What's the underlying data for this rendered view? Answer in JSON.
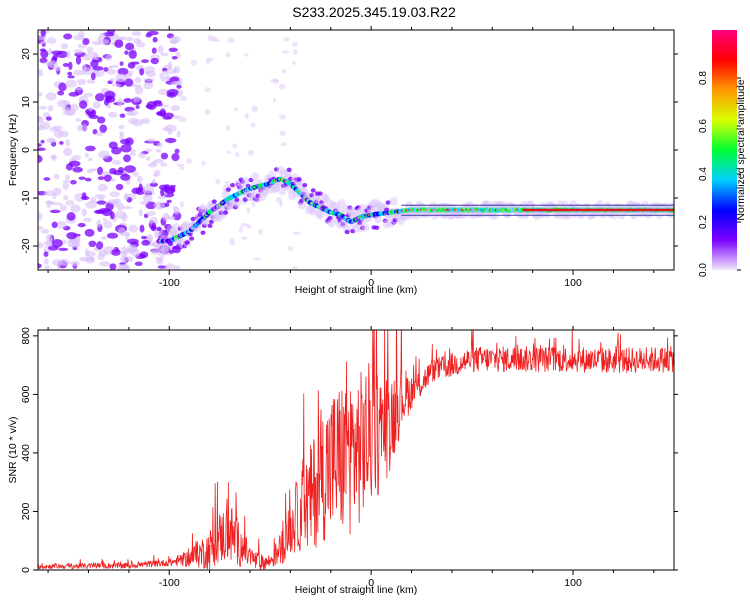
{
  "title": "S233.2025.345.19.03.R22",
  "chart_data": [
    {
      "type": "heatmap",
      "name": "spectrogram",
      "xlabel": "Height of straight line (km)",
      "ylabel": "Frequency (Hz)",
      "xlim": [
        -165,
        150
      ],
      "ylim": [
        -25,
        25
      ],
      "xticks": [
        -100,
        0,
        100
      ],
      "yticks": [
        -20,
        -10,
        0,
        10,
        20
      ],
      "ridge": {
        "x": [
          -100,
          -90,
          -80,
          -70,
          -60,
          -50,
          -45,
          -40,
          -35,
          -30,
          -25,
          -20,
          -15,
          -10,
          -5,
          0,
          10,
          20,
          40,
          60,
          80,
          100,
          120,
          150
        ],
        "y": [
          -19,
          -17,
          -13,
          -10,
          -8,
          -7,
          -6,
          -7,
          -9,
          -11,
          -12,
          -13,
          -13.5,
          -15,
          -14,
          -13.5,
          -13,
          -12.5,
          -12.5,
          -12.5,
          -12.5,
          -12.5,
          -12.5,
          -12.5
        ]
      },
      "colorbar": {
        "label": "Normalized spectral amplitude",
        "range": [
          0,
          1
        ],
        "ticks": [
          0.0,
          0.2,
          0.4,
          0.6,
          0.8
        ],
        "tick_labels": [
          "0.0",
          "0.2",
          "0.4",
          "0.6",
          "0.8"
        ],
        "colors": [
          "#f2e6fb",
          "#7b00ff",
          "#0000ff",
          "#00d0ff",
          "#00ff33",
          "#d8ff00",
          "#ff9900",
          "#ff0000",
          "#ff0080"
        ]
      }
    },
    {
      "type": "line",
      "name": "snr",
      "xlabel": "Height of straight line (km)",
      "ylabel": "SNR (10 * v/v)",
      "xlim": [
        -165,
        150
      ],
      "ylim": [
        0,
        820
      ],
      "xticks": [
        -100,
        0,
        100
      ],
      "yticks": [
        0,
        200,
        400,
        600,
        800
      ],
      "color": "#ee2020",
      "trend": {
        "x": [
          -165,
          -120,
          -100,
          -90,
          -80,
          -75,
          -70,
          -65,
          -60,
          -55,
          -50,
          -45,
          -40,
          -35,
          -30,
          -25,
          -20,
          -15,
          -10,
          -5,
          0,
          5,
          10,
          15,
          20,
          25,
          30,
          40,
          50,
          60,
          80,
          100,
          120,
          150
        ],
        "y": [
          12,
          15,
          25,
          40,
          70,
          110,
          130,
          85,
          45,
          22,
          30,
          70,
          140,
          200,
          240,
          320,
          360,
          380,
          400,
          420,
          470,
          470,
          520,
          590,
          610,
          640,
          680,
          700,
          720,
          720,
          720,
          720,
          715,
          720
        ]
      },
      "spread": {
        "x": [
          -165,
          -100,
          -90,
          -80,
          -70,
          -60,
          -50,
          -40,
          -30,
          -20,
          -10,
          0,
          10,
          20,
          30,
          50,
          150
        ],
        "y": [
          8,
          12,
          30,
          70,
          110,
          40,
          25,
          90,
          190,
          260,
          280,
          250,
          170,
          60,
          40,
          45,
          45
        ]
      }
    }
  ]
}
